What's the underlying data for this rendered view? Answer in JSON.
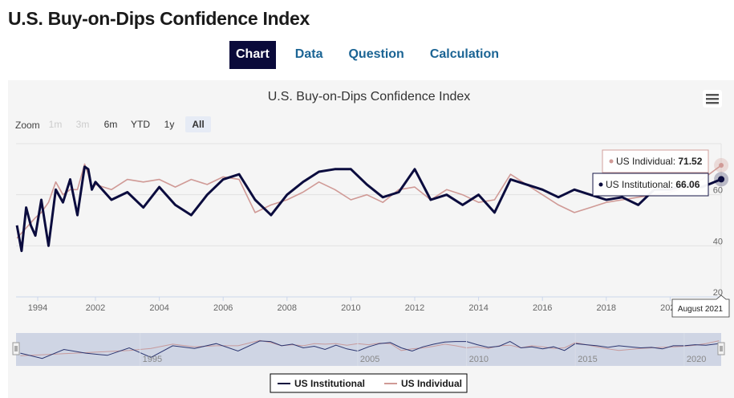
{
  "page": {
    "title": "U.S. Buy-on-Dips Confidence Index",
    "tabs": [
      {
        "label": "Chart",
        "active": true
      },
      {
        "label": "Data",
        "active": false
      },
      {
        "label": "Question",
        "active": false
      },
      {
        "label": "Calculation",
        "active": false
      }
    ]
  },
  "controls": {
    "zoom_label": "Zoom",
    "range_buttons": [
      {
        "label": "1m",
        "state": "disabled"
      },
      {
        "label": "3m",
        "state": "disabled"
      },
      {
        "label": "6m",
        "state": "normal"
      },
      {
        "label": "YTD",
        "state": "normal"
      },
      {
        "label": "1y",
        "state": "normal"
      },
      {
        "label": "All",
        "state": "selected"
      }
    ],
    "menu_icon": "hamburger-menu-icon"
  },
  "tooltip": {
    "date": "August 2021",
    "individual_label": "US Individual: ",
    "individual_value": "71.52",
    "institutional_label": "US Institutional: ",
    "institutional_value": "66.06"
  },
  "colors": {
    "institutional": "#0b0c3e",
    "individual": "#d09a96",
    "active_tab_bg": "#0a0a3a",
    "tab_link": "#1b6494",
    "navigator_mask": "#c5cde0"
  },
  "chart_data": {
    "type": "line",
    "title": "U.S. Buy-on-Dips Confidence Index",
    "xlabel": "",
    "ylabel": "",
    "ylim": [
      20,
      80
    ],
    "yticks": [
      20,
      40,
      60
    ],
    "xtick_labels": [
      "1994",
      "2002",
      "2004",
      "2006",
      "2008",
      "2010",
      "2012",
      "2014",
      "2016",
      "2018",
      "2020"
    ],
    "grid": true,
    "legend_position": "bottom-center",
    "navigator_labels": [
      "1995",
      "2005",
      "2010",
      "2015",
      "2020"
    ],
    "x": [
      1989.5,
      1990.5,
      1991.5,
      1992.5,
      1993.5,
      1994.5,
      1995.5,
      1996.5,
      1997.5,
      1998.5,
      1999.5,
      2000.5,
      2001.0,
      2001.5,
      2002.0,
      2002.5,
      2003.0,
      2003.5,
      2004.0,
      2004.5,
      2005.0,
      2005.5,
      2006.0,
      2006.5,
      2007.0,
      2007.5,
      2008.0,
      2008.5,
      2009.0,
      2009.5,
      2010.0,
      2010.5,
      2011.0,
      2011.5,
      2012.0,
      2012.5,
      2013.0,
      2013.5,
      2014.0,
      2014.5,
      2015.0,
      2015.5,
      2016.0,
      2016.5,
      2017.0,
      2017.5,
      2018.0,
      2018.5,
      2019.0,
      2019.5,
      2020.0,
      2020.5,
      2021.0,
      2021.6
    ],
    "series": [
      {
        "name": "US Institutional",
        "values": [
          48,
          38,
          55,
          48,
          44,
          58,
          40,
          62,
          57,
          66,
          52,
          71,
          70,
          62,
          65,
          58,
          61,
          55,
          63,
          56,
          52,
          60,
          66,
          68,
          58,
          52,
          60,
          65,
          69,
          70,
          70,
          64,
          59,
          61,
          70,
          58,
          60,
          56,
          60,
          53,
          66,
          64,
          62,
          59,
          62,
          60,
          58,
          59,
          56,
          62,
          62,
          64,
          63,
          66.06
        ]
      },
      {
        "name": "US Individual",
        "values": [
          43,
          45,
          47,
          49,
          51,
          53,
          57,
          65,
          60,
          62,
          62,
          72,
          68,
          62,
          64,
          62,
          66,
          65,
          66,
          63,
          66,
          64,
          67,
          66,
          53,
          56,
          58,
          61,
          65,
          62,
          58,
          60,
          57,
          62,
          63,
          58,
          62,
          60,
          57,
          58,
          68,
          64,
          60,
          56,
          53,
          55,
          57,
          58,
          59,
          60,
          61,
          63,
          66,
          71.52
        ]
      }
    ]
  }
}
